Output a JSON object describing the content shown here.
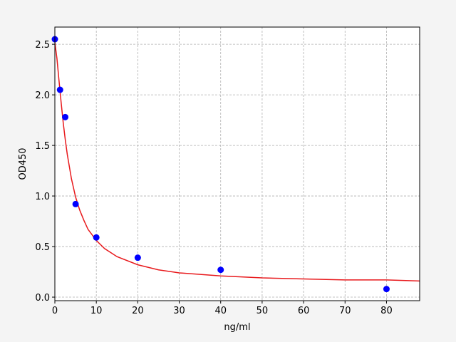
{
  "chart_data": {
    "type": "scatter",
    "x_label": "ng/ml",
    "y_label": "OD450",
    "xlim": [
      0,
      88
    ],
    "ylim": [
      -0.035,
      2.67
    ],
    "xticks": [
      0,
      10,
      20,
      30,
      40,
      50,
      60,
      70,
      80
    ],
    "yticks": [
      {
        "value": 0,
        "label": "0.0"
      },
      0.5,
      {
        "value": 1,
        "label": "1.0"
      },
      1.5,
      {
        "value": 2,
        "label": "2.0"
      },
      2.5
    ],
    "grid": true,
    "series": [
      {
        "type": "line",
        "color": "#e8191c",
        "x": [
          0,
          0.5,
          1,
          1.5,
          2,
          2.5,
          3,
          4,
          5,
          6,
          7,
          8,
          10,
          12,
          15,
          20,
          25,
          30,
          40,
          50,
          60,
          70,
          80,
          88
        ],
        "values": [
          2.52,
          2.36,
          2.14,
          1.93,
          1.73,
          1.56,
          1.41,
          1.17,
          0.99,
          0.86,
          0.76,
          0.67,
          0.56,
          0.48,
          0.4,
          0.32,
          0.27,
          0.24,
          0.21,
          0.19,
          0.18,
          0.17,
          0.17,
          0.16
        ]
      },
      {
        "type": "scatter",
        "color": "#0000ff",
        "x": [
          0,
          1.25,
          2.5,
          5,
          10,
          20,
          40,
          80
        ],
        "values": [
          2.55,
          2.05,
          1.78,
          0.92,
          0.59,
          0.39,
          0.27,
          0.08
        ]
      }
    ]
  }
}
